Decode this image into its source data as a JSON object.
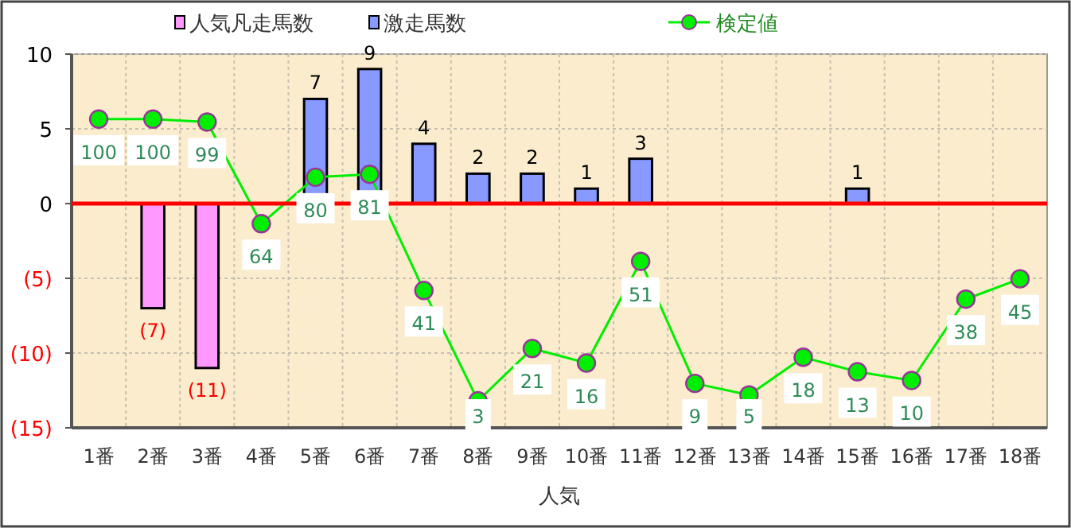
{
  "chart_data": {
    "type": "bar",
    "xlabel": "人気",
    "categories": [
      "1番",
      "2番",
      "3番",
      "4番",
      "5番",
      "6番",
      "7番",
      "8番",
      "9番",
      "10番",
      "11番",
      "12番",
      "13番",
      "14番",
      "15番",
      "16番",
      "17番",
      "18番"
    ],
    "ylim": [
      -15,
      10
    ],
    "yticks": [
      {
        "value": -15,
        "label": "(15)"
      },
      {
        "value": -10,
        "label": "(10)"
      },
      {
        "value": -5,
        "label": "(5)"
      },
      0,
      5,
      10
    ],
    "y2lim": [
      -6.3,
      122.4
    ],
    "grid": true,
    "legend": "top",
    "ref_lines": [
      {
        "axis": "y",
        "value": 0,
        "color": "#ff0000"
      }
    ],
    "series": [
      {
        "name": "人気凡走馬数",
        "color": "#ff99ff",
        "values": [
          null,
          -7,
          -11,
          null,
          null,
          null,
          null,
          null,
          null,
          null,
          null,
          null,
          null,
          null,
          null,
          null,
          null,
          null
        ],
        "value_labels": [
          null,
          "(7)",
          "(11)",
          null,
          null,
          null,
          null,
          null,
          null,
          null,
          null,
          null,
          null,
          null,
          null,
          null,
          null,
          null
        ]
      },
      {
        "name": "激走馬数",
        "color": "#8899ff",
        "values": [
          null,
          null,
          null,
          null,
          7,
          9,
          4,
          2,
          2,
          1,
          3,
          null,
          null,
          null,
          1,
          null,
          null,
          null
        ],
        "value_labels": [
          null,
          null,
          null,
          null,
          "7",
          "9",
          "4",
          "2",
          "2",
          "1",
          "3",
          null,
          null,
          null,
          "1",
          null,
          null,
          null
        ]
      },
      {
        "name": "検定値",
        "type": "line",
        "axis": "y2",
        "marker": "circle",
        "color": "#00ee00",
        "values": [
          100,
          100,
          99,
          64,
          80,
          81,
          41,
          3,
          21,
          16,
          51,
          9,
          5,
          18,
          13,
          10,
          38,
          45
        ],
        "value_labels": [
          "100",
          "100",
          "99",
          "64",
          "80",
          "81",
          "41",
          "3",
          "21",
          "16",
          "51",
          "9",
          "5",
          "18",
          "13",
          "10",
          "38",
          "45"
        ]
      }
    ]
  }
}
